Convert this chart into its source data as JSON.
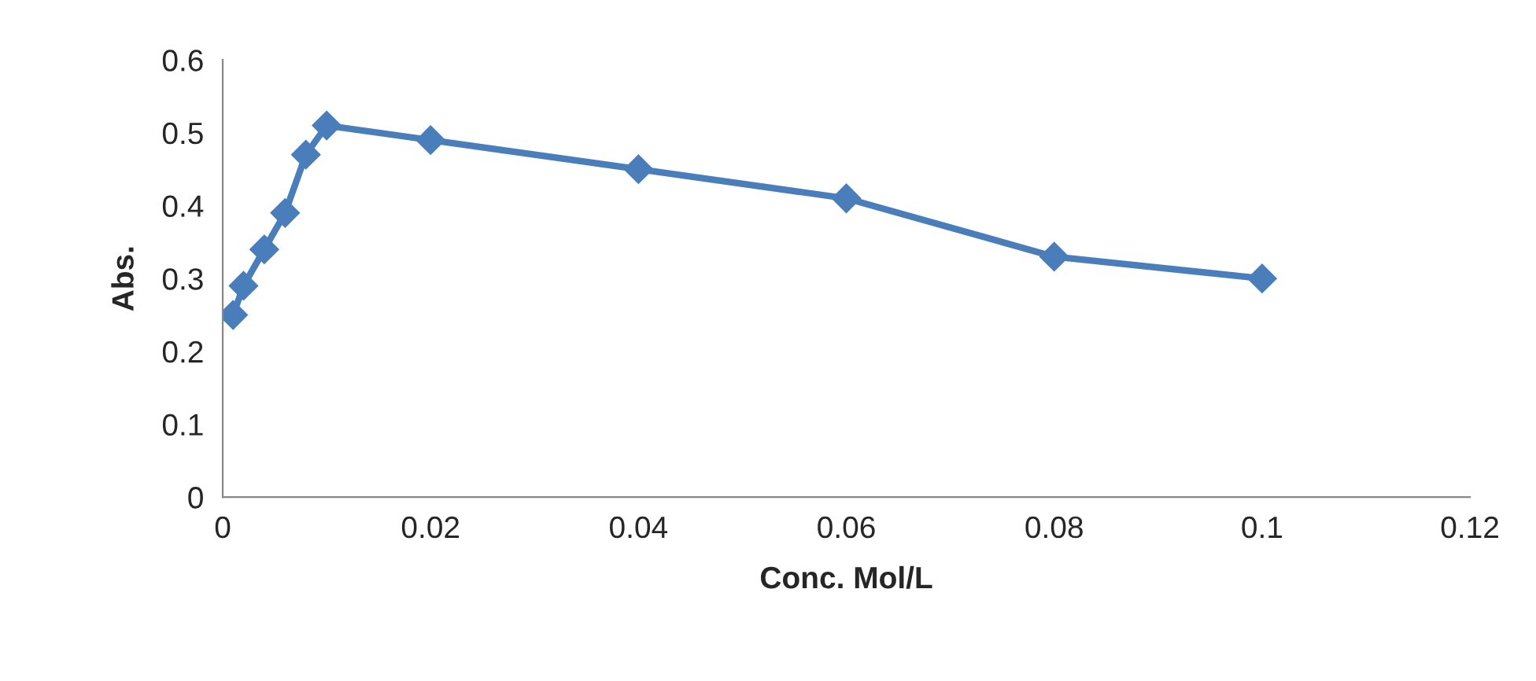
{
  "chart_data": {
    "type": "line",
    "xlabel": "Conc. Mol/L",
    "ylabel": "Abs.",
    "x": [
      0.001,
      0.002,
      0.004,
      0.006,
      0.008,
      0.01,
      0.02,
      0.04,
      0.06,
      0.08,
      0.1
    ],
    "series": [
      {
        "color": "#4a7ebb",
        "values": [
          0.25,
          0.29,
          0.34,
          0.39,
          0.47,
          0.51,
          0.49,
          0.45,
          0.41,
          0.33,
          0.3
        ]
      }
    ],
    "xlim": [
      0,
      0.12
    ],
    "xticks": [
      0,
      0.02,
      0.04,
      0.06,
      0.08,
      0.1,
      0.12
    ],
    "ylim": [
      0,
      0.6
    ],
    "yticks": [
      0,
      0.1,
      0.2,
      0.3,
      0.4,
      0.5,
      0.6
    ],
    "grid": false,
    "marker": "diamond",
    "line_style": "solid"
  }
}
